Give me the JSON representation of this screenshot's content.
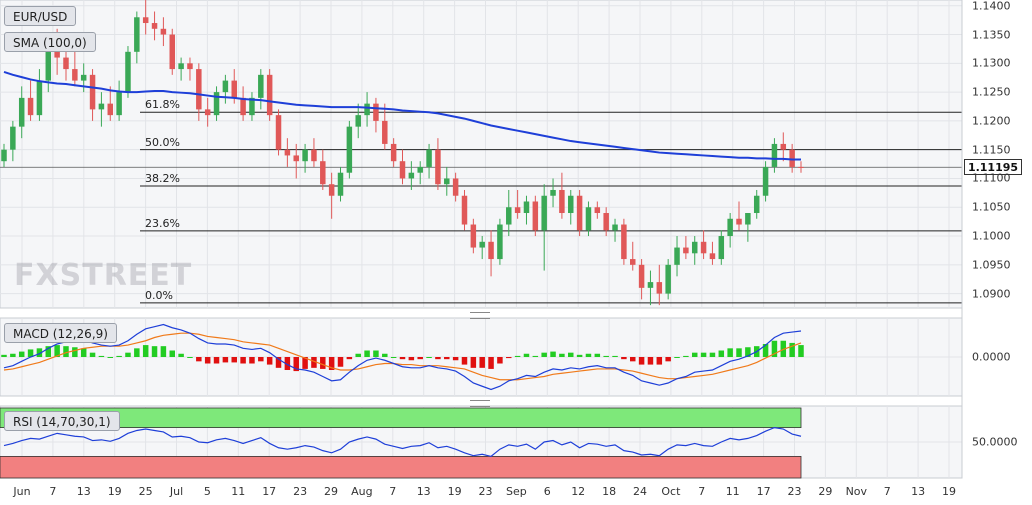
{
  "symbol": "EUR/USD",
  "indicators": {
    "sma_label": "SMA (100,0)",
    "macd_label": "MACD (12,26,9)",
    "rsi_label": "RSI (14,70,30,1)"
  },
  "watermark": "FXSTREET",
  "last_price": "1.11195",
  "colors": {
    "up": "#e05858",
    "down": "#3aa856",
    "sma": "#1e3fd8",
    "macd_line": "#1e3fd8",
    "signal_line": "#f07a1a",
    "hist_pos": "#22cc22",
    "hist_neg": "#e01010",
    "rsi_line": "#1e3fd8",
    "rsi_overbought": "#7ee87a",
    "rsi_oversold": "#f28080",
    "background": "#f5f6f8"
  },
  "chart_data": [
    {
      "type": "candlestick",
      "title": "EUR/USD",
      "y_ticks": [
        "1.1400",
        "1.1350",
        "1.1300",
        "1.1250",
        "1.1200",
        "1.1150",
        "1.1100",
        "1.1050",
        "1.1000",
        "1.0950",
        "1.0900"
      ],
      "ylim": [
        1.0875,
        1.141
      ],
      "x_ticks": [
        "Jun",
        "7",
        "13",
        "19",
        "25",
        "Jul",
        "5",
        "11",
        "17",
        "23",
        "29",
        "Aug",
        "7",
        "13",
        "19",
        "23",
        "Sep",
        "6",
        "12",
        "18",
        "24",
        "Oct",
        "7",
        "11",
        "17",
        "23",
        "29",
        "Nov",
        "7",
        "13",
        "19"
      ],
      "sma_period": 100,
      "fibonacci": [
        {
          "label": "61.8%",
          "level": 1.1215
        },
        {
          "label": "50.0%",
          "level": 1.115
        },
        {
          "label": "38.2%",
          "level": 1.1087
        },
        {
          "label": "23.6%",
          "level": 1.1009
        },
        {
          "label": "0.0%",
          "level": 1.0884
        }
      ],
      "current_price_line": 1.11195,
      "candles": [
        [
          1.113,
          1.116,
          1.112,
          1.115
        ],
        [
          1.115,
          1.12,
          1.113,
          1.119
        ],
        [
          1.119,
          1.126,
          1.117,
          1.124
        ],
        [
          1.124,
          1.127,
          1.12,
          1.121
        ],
        [
          1.121,
          1.129,
          1.12,
          1.127
        ],
        [
          1.127,
          1.135,
          1.125,
          1.134
        ],
        [
          1.134,
          1.136,
          1.128,
          1.131
        ],
        [
          1.131,
          1.133,
          1.127,
          1.129
        ],
        [
          1.129,
          1.132,
          1.126,
          1.127
        ],
        [
          1.127,
          1.13,
          1.125,
          1.128
        ],
        [
          1.128,
          1.129,
          1.12,
          1.122
        ],
        [
          1.122,
          1.125,
          1.119,
          1.123
        ],
        [
          1.123,
          1.126,
          1.12,
          1.121
        ],
        [
          1.121,
          1.127,
          1.12,
          1.125
        ],
        [
          1.125,
          1.133,
          1.124,
          1.132
        ],
        [
          1.132,
          1.139,
          1.13,
          1.138
        ],
        [
          1.138,
          1.141,
          1.135,
          1.137
        ],
        [
          1.137,
          1.139,
          1.134,
          1.136
        ],
        [
          1.136,
          1.138,
          1.133,
          1.135
        ],
        [
          1.135,
          1.136,
          1.128,
          1.129
        ],
        [
          1.129,
          1.131,
          1.127,
          1.13
        ],
        [
          1.13,
          1.131,
          1.127,
          1.129
        ],
        [
          1.129,
          1.13,
          1.12,
          1.122
        ],
        [
          1.122,
          1.124,
          1.119,
          1.121
        ],
        [
          1.121,
          1.126,
          1.12,
          1.125
        ],
        [
          1.125,
          1.128,
          1.123,
          1.127
        ],
        [
          1.127,
          1.129,
          1.123,
          1.124
        ],
        [
          1.124,
          1.126,
          1.12,
          1.121
        ],
        [
          1.121,
          1.125,
          1.12,
          1.124
        ],
        [
          1.124,
          1.129,
          1.122,
          1.128
        ],
        [
          1.128,
          1.129,
          1.12,
          1.121
        ],
        [
          1.121,
          1.122,
          1.114,
          1.115
        ],
        [
          1.115,
          1.117,
          1.112,
          1.114
        ],
        [
          1.114,
          1.116,
          1.11,
          1.113
        ],
        [
          1.113,
          1.116,
          1.111,
          1.115
        ],
        [
          1.115,
          1.117,
          1.112,
          1.113
        ],
        [
          1.113,
          1.115,
          1.108,
          1.109
        ],
        [
          1.109,
          1.111,
          1.103,
          1.107
        ],
        [
          1.107,
          1.112,
          1.106,
          1.111
        ],
        [
          1.111,
          1.12,
          1.11,
          1.119
        ],
        [
          1.119,
          1.123,
          1.117,
          1.121
        ],
        [
          1.121,
          1.125,
          1.119,
          1.123
        ],
        [
          1.123,
          1.124,
          1.118,
          1.12
        ],
        [
          1.12,
          1.123,
          1.115,
          1.116
        ],
        [
          1.116,
          1.117,
          1.112,
          1.113
        ],
        [
          1.113,
          1.115,
          1.109,
          1.11
        ],
        [
          1.11,
          1.113,
          1.108,
          1.111
        ],
        [
          1.111,
          1.113,
          1.109,
          1.112
        ],
        [
          1.112,
          1.116,
          1.11,
          1.115
        ],
        [
          1.115,
          1.117,
          1.108,
          1.109
        ],
        [
          1.109,
          1.112,
          1.107,
          1.11
        ],
        [
          1.11,
          1.111,
          1.106,
          1.107
        ],
        [
          1.107,
          1.108,
          1.101,
          1.102
        ],
        [
          1.102,
          1.103,
          1.097,
          1.098
        ],
        [
          1.098,
          1.1,
          1.096,
          1.099
        ],
        [
          1.099,
          1.101,
          1.093,
          1.096
        ],
        [
          1.096,
          1.103,
          1.095,
          1.102
        ],
        [
          1.102,
          1.108,
          1.1,
          1.105
        ],
        [
          1.105,
          1.108,
          1.103,
          1.104
        ],
        [
          1.104,
          1.107,
          1.102,
          1.106
        ],
        [
          1.106,
          1.107,
          1.1,
          1.101
        ],
        [
          1.101,
          1.109,
          1.094,
          1.107
        ],
        [
          1.107,
          1.11,
          1.105,
          1.108
        ],
        [
          1.108,
          1.111,
          1.103,
          1.104
        ],
        [
          1.104,
          1.108,
          1.102,
          1.107
        ],
        [
          1.107,
          1.108,
          1.1,
          1.101
        ],
        [
          1.101,
          1.106,
          1.1,
          1.105
        ],
        [
          1.105,
          1.106,
          1.103,
          1.104
        ],
        [
          1.104,
          1.105,
          1.1,
          1.101
        ],
        [
          1.101,
          1.103,
          1.099,
          1.102
        ],
        [
          1.102,
          1.103,
          1.095,
          1.096
        ],
        [
          1.096,
          1.099,
          1.094,
          1.095
        ],
        [
          1.095,
          1.096,
          1.089,
          1.091
        ],
        [
          1.091,
          1.094,
          1.088,
          1.092
        ],
        [
          1.092,
          1.095,
          1.088,
          1.09
        ],
        [
          1.09,
          1.096,
          1.089,
          1.095
        ],
        [
          1.095,
          1.1,
          1.093,
          1.098
        ],
        [
          1.098,
          1.1,
          1.096,
          1.097
        ],
        [
          1.097,
          1.1,
          1.095,
          1.099
        ],
        [
          1.099,
          1.101,
          1.096,
          1.097
        ],
        [
          1.097,
          1.099,
          1.095,
          1.096
        ],
        [
          1.096,
          1.101,
          1.095,
          1.1
        ],
        [
          1.1,
          1.104,
          1.098,
          1.103
        ],
        [
          1.103,
          1.106,
          1.101,
          1.102
        ],
        [
          1.102,
          1.104,
          1.099,
          1.104
        ],
        [
          1.104,
          1.108,
          1.103,
          1.107
        ],
        [
          1.107,
          1.113,
          1.106,
          1.112
        ],
        [
          1.112,
          1.117,
          1.111,
          1.116
        ],
        [
          1.116,
          1.118,
          1.113,
          1.115
        ],
        [
          1.115,
          1.116,
          1.111,
          1.112
        ],
        [
          1.112,
          1.113,
          1.111,
          1.1119
        ]
      ],
      "sma": [
        1.1285,
        1.128,
        1.1276,
        1.1272,
        1.1269,
        1.1267,
        1.1265,
        1.1264,
        1.1262,
        1.126,
        1.1258,
        1.1256,
        1.1253,
        1.1251,
        1.125,
        1.125,
        1.1251,
        1.1252,
        1.1252,
        1.125,
        1.1249,
        1.1248,
        1.1246,
        1.1244,
        1.1242,
        1.1241,
        1.124,
        1.1238,
        1.1237,
        1.1236,
        1.1234,
        1.1232,
        1.123,
        1.1228,
        1.1227,
        1.1226,
        1.1225,
        1.1224,
        1.1224,
        1.1224,
        1.1224,
        1.1223,
        1.1222,
        1.1221,
        1.122,
        1.1218,
        1.1217,
        1.1216,
        1.1215,
        1.1213,
        1.121,
        1.1207,
        1.1204,
        1.12,
        1.1196,
        1.1192,
        1.1189,
        1.1186,
        1.1183,
        1.118,
        1.1177,
        1.1174,
        1.1171,
        1.1168,
        1.1165,
        1.1163,
        1.1161,
        1.1159,
        1.1157,
        1.1155,
        1.1153,
        1.1151,
        1.1149,
        1.1147,
        1.1145,
        1.1144,
        1.1143,
        1.1142,
        1.1141,
        1.114,
        1.1139,
        1.1138,
        1.1137,
        1.1136,
        1.1136,
        1.1135,
        1.1135,
        1.1134,
        1.1134,
        1.1133,
        1.1133
      ],
      "macd": [
        -0.001,
        -0.0008,
        -0.0004,
        0.0,
        0.0003,
        0.0008,
        0.0012,
        0.0014,
        0.0015,
        0.0016,
        0.0013,
        0.0011,
        0.001,
        0.0011,
        0.0015,
        0.0021,
        0.0026,
        0.0028,
        0.003,
        0.0027,
        0.0025,
        0.0022,
        0.0017,
        0.0013,
        0.0012,
        0.0012,
        0.0011,
        0.0008,
        0.0007,
        0.0008,
        0.0004,
        -0.0002,
        -0.0007,
        -0.0011,
        -0.0012,
        -0.0014,
        -0.0018,
        -0.0022,
        -0.0021,
        -0.0014,
        -0.0008,
        -0.0003,
        -0.0001,
        -0.0003,
        -0.0006,
        -0.0009,
        -0.001,
        -0.001,
        -0.0008,
        -0.001,
        -0.0011,
        -0.0013,
        -0.0018,
        -0.0024,
        -0.0027,
        -0.003,
        -0.0027,
        -0.0022,
        -0.002,
        -0.0017,
        -0.0018,
        -0.0014,
        -0.0011,
        -0.0012,
        -0.001,
        -0.0011,
        -0.0009,
        -0.0008,
        -0.001,
        -0.001,
        -0.0014,
        -0.0017,
        -0.0022,
        -0.0024,
        -0.0026,
        -0.0024,
        -0.002,
        -0.0018,
        -0.0014,
        -0.0013,
        -0.0012,
        -0.0008,
        -0.0004,
        -0.0002,
        0.0001,
        0.0005,
        0.0011,
        0.0018,
        0.0022,
        0.0023,
        0.0024
      ],
      "signal": [
        -0.0012,
        -0.0011,
        -0.0009,
        -0.0007,
        -0.0005,
        -0.0002,
        0.0001,
        0.0004,
        0.0006,
        0.0008,
        0.0009,
        0.001,
        0.001,
        0.001,
        0.0011,
        0.0013,
        0.0015,
        0.0018,
        0.002,
        0.0021,
        0.0022,
        0.0022,
        0.0021,
        0.0019,
        0.0018,
        0.0017,
        0.0016,
        0.0014,
        0.0013,
        0.0012,
        0.0011,
        0.0008,
        0.0005,
        0.0002,
        -0.0001,
        -0.0004,
        -0.0007,
        -0.001,
        -0.0012,
        -0.0012,
        -0.0011,
        -0.0009,
        -0.0007,
        -0.0006,
        -0.0006,
        -0.0007,
        -0.0007,
        -0.0008,
        -0.0008,
        -0.0008,
        -0.0009,
        -0.001,
        -0.0011,
        -0.0014,
        -0.0017,
        -0.0019,
        -0.0021,
        -0.0021,
        -0.0021,
        -0.002,
        -0.0019,
        -0.0018,
        -0.0016,
        -0.0015,
        -0.0014,
        -0.0013,
        -0.0012,
        -0.0011,
        -0.0011,
        -0.0011,
        -0.0012,
        -0.0013,
        -0.0015,
        -0.0017,
        -0.0019,
        -0.002,
        -0.002,
        -0.0019,
        -0.0018,
        -0.0017,
        -0.0016,
        -0.0014,
        -0.0012,
        -0.001,
        -0.0008,
        -0.0005,
        -0.0001,
        0.0003,
        0.0007,
        0.001,
        0.0013
      ],
      "rsi": [
        45,
        48,
        52,
        55,
        54,
        58,
        62,
        60,
        58,
        57,
        52,
        53,
        51,
        55,
        62,
        66,
        68,
        66,
        64,
        57,
        58,
        56,
        50,
        49,
        53,
        55,
        52,
        48,
        52,
        56,
        48,
        42,
        40,
        42,
        45,
        43,
        38,
        35,
        40,
        50,
        54,
        57,
        54,
        47,
        44,
        41,
        44,
        45,
        49,
        42,
        44,
        40,
        35,
        31,
        33,
        30,
        40,
        46,
        44,
        47,
        40,
        50,
        52,
        46,
        50,
        42,
        48,
        47,
        44,
        46,
        38,
        36,
        32,
        33,
        31,
        40,
        46,
        45,
        48,
        45,
        44,
        50,
        55,
        53,
        55,
        59,
        65,
        70,
        68,
        61,
        58
      ],
      "macd_yticks": [
        "0.0000"
      ],
      "rsi_yticks": [
        "50.0000"
      ],
      "rsi_levels": {
        "overbought": 70,
        "oversold": 30
      }
    }
  ]
}
